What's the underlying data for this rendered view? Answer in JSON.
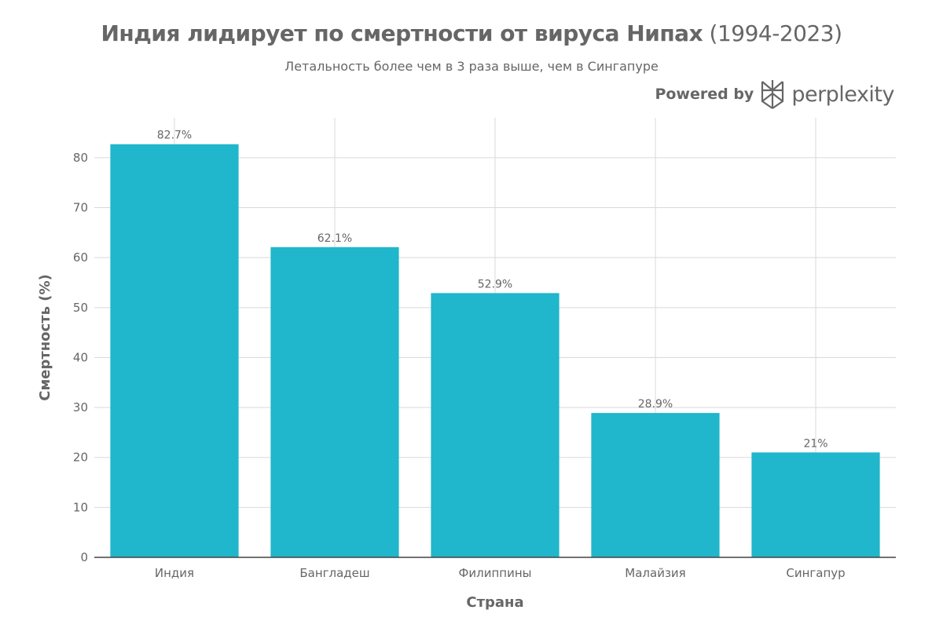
{
  "header": {
    "title_bold": "Индия лидирует по смертности от вируса Нипах",
    "title_years": "(1994-2023)",
    "subtitle": "Летальность более чем в 3 раза выше, чем в Сингапуре",
    "brand_prefix": "Powered by",
    "brand_name": "perplexity",
    "brand_logo_icon": "perplexity-logo-icon"
  },
  "colors": {
    "bar": "#20B6CB",
    "grid": "#d9d9d9",
    "text": "#666666",
    "axis": "#444444"
  },
  "chart_data": {
    "type": "bar",
    "title": "Индия лидирует по смертности от вируса Нипах (1994-2023)",
    "subtitle": "Летальность более чем в 3 раза выше, чем в Сингапуре",
    "categories": [
      "Индия",
      "Бангладеш",
      "Филиппины",
      "Малайзия",
      "Сингапур"
    ],
    "values": [
      82.7,
      62.1,
      52.9,
      28.9,
      21
    ],
    "data_labels": [
      "82.7%",
      "62.1%",
      "52.9%",
      "28.9%",
      "21%"
    ],
    "xlabel": "Страна",
    "ylabel": "Смертность (%)",
    "ylim": [
      0,
      88
    ],
    "yticks": [
      0,
      10,
      20,
      30,
      40,
      50,
      60,
      70,
      80
    ],
    "grid": true
  }
}
